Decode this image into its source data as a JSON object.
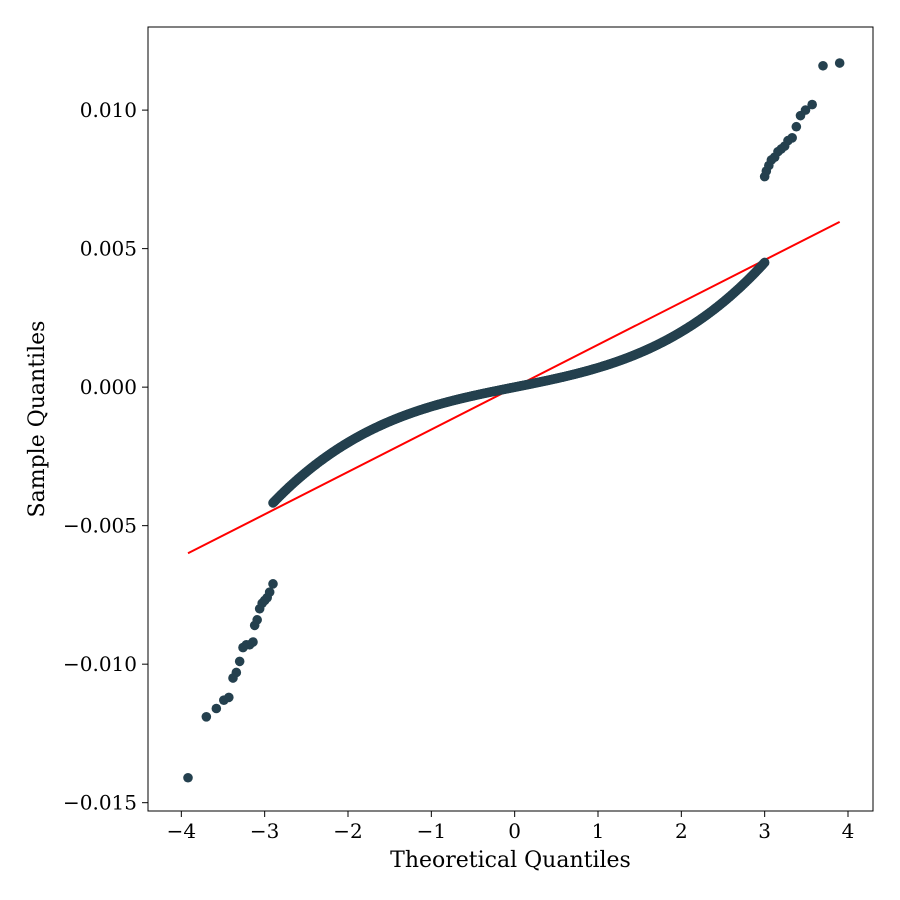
{
  "chart_data": {
    "type": "scatter",
    "title": "",
    "xlabel": "Theoretical Quantiles",
    "ylabel": "Sample Quantiles",
    "xlim": [
      -4.4,
      4.3
    ],
    "ylim": [
      -0.0153,
      0.013
    ],
    "x_ticks": [
      -4,
      -3,
      -2,
      -1,
      0,
      1,
      2,
      3,
      4
    ],
    "x_tick_labels": [
      "−4",
      "−3",
      "−2",
      "−1",
      "0",
      "1",
      "2",
      "3",
      "4"
    ],
    "y_ticks": [
      -0.015,
      -0.01,
      -0.005,
      0.0,
      0.005,
      0.01
    ],
    "y_tick_labels": [
      "−0.015",
      "−0.010",
      "−0.005",
      "0.000",
      "0.005",
      "0.010"
    ],
    "grid": false,
    "series": [
      {
        "name": "sample quantiles",
        "kind": "points",
        "color": "#24404e",
        "points": [
          [
            -3.92,
            -0.0141
          ],
          [
            -3.7,
            -0.0119
          ],
          [
            -3.58,
            -0.0116
          ],
          [
            -3.49,
            -0.0113
          ],
          [
            -3.43,
            -0.0112
          ],
          [
            -3.38,
            -0.0105
          ],
          [
            -3.34,
            -0.0103
          ],
          [
            -3.3,
            -0.0099
          ],
          [
            -3.26,
            -0.0094
          ],
          [
            -3.22,
            -0.0093
          ],
          [
            -3.18,
            -0.0093
          ],
          [
            -3.14,
            -0.0092
          ],
          [
            -3.12,
            -0.0086
          ],
          [
            -3.09,
            -0.0084
          ],
          [
            -3.06,
            -0.008
          ],
          [
            -3.03,
            -0.0078
          ],
          [
            -3.0,
            -0.0077
          ],
          [
            -2.97,
            -0.0076
          ],
          [
            -2.94,
            -0.0074
          ],
          [
            -2.9,
            -0.0071
          ],
          [
            3.9,
            0.0117
          ],
          [
            3.7,
            0.0116
          ],
          [
            3.57,
            0.0102
          ],
          [
            3.49,
            0.01
          ],
          [
            3.43,
            0.0098
          ],
          [
            3.38,
            0.0094
          ],
          [
            3.33,
            0.009
          ],
          [
            3.28,
            0.0089
          ],
          [
            3.24,
            0.0087
          ],
          [
            3.2,
            0.0086
          ],
          [
            3.16,
            0.0085
          ],
          [
            3.12,
            0.0083
          ],
          [
            3.08,
            0.0082
          ],
          [
            3.05,
            0.008
          ],
          [
            3.02,
            0.0078
          ],
          [
            3.0,
            0.0076
          ]
        ]
      },
      {
        "name": "reference line",
        "kind": "line",
        "color": "#ff0000",
        "slope": 0.00153,
        "intercept": 0.0,
        "x_range": [
          -3.92,
          3.9
        ]
      }
    ]
  }
}
